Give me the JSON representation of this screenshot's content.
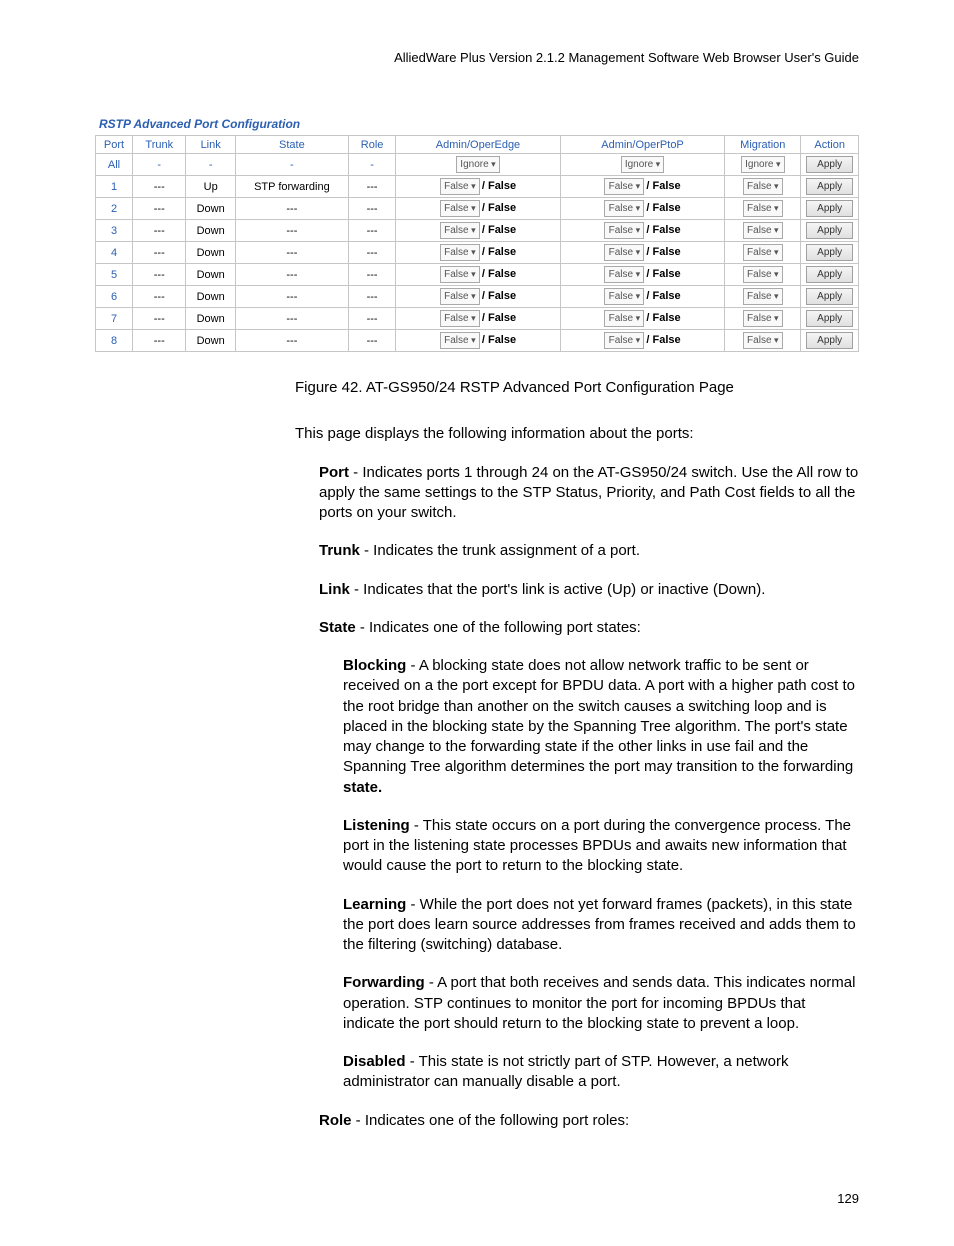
{
  "header": "AlliedWare Plus Version 2.1.2 Management Software Web Browser User's Guide",
  "table": {
    "title": "RSTP Advanced Port Configuration",
    "columns": [
      "Port",
      "Trunk",
      "Link",
      "State",
      "Role",
      "Admin/OperEdge",
      "Admin/OperPtoP",
      "Migration",
      "Action"
    ],
    "allRow": {
      "port": "All",
      "trunk": "-",
      "link": "-",
      "state": "-",
      "role": "-",
      "edge_dd": "Ignore",
      "ptop_dd": "Ignore",
      "mig_dd": "Ignore",
      "action": "Apply"
    },
    "rows": [
      {
        "port": "1",
        "trunk": "---",
        "link": "Up",
        "state": "STP forwarding",
        "role": "---",
        "edge_dd": "False",
        "edge_val": "/ False",
        "ptop_dd": "False",
        "ptop_val": "/ False",
        "mig_dd": "False",
        "action": "Apply"
      },
      {
        "port": "2",
        "trunk": "---",
        "link": "Down",
        "state": "---",
        "role": "---",
        "edge_dd": "False",
        "edge_val": "/ False",
        "ptop_dd": "False",
        "ptop_val": "/ False",
        "mig_dd": "False",
        "action": "Apply"
      },
      {
        "port": "3",
        "trunk": "---",
        "link": "Down",
        "state": "---",
        "role": "---",
        "edge_dd": "False",
        "edge_val": "/ False",
        "ptop_dd": "False",
        "ptop_val": "/ False",
        "mig_dd": "False",
        "action": "Apply"
      },
      {
        "port": "4",
        "trunk": "---",
        "link": "Down",
        "state": "---",
        "role": "---",
        "edge_dd": "False",
        "edge_val": "/ False",
        "ptop_dd": "False",
        "ptop_val": "/ False",
        "mig_dd": "False",
        "action": "Apply"
      },
      {
        "port": "5",
        "trunk": "---",
        "link": "Down",
        "state": "---",
        "role": "---",
        "edge_dd": "False",
        "edge_val": "/ False",
        "ptop_dd": "False",
        "ptop_val": "/ False",
        "mig_dd": "False",
        "action": "Apply"
      },
      {
        "port": "6",
        "trunk": "---",
        "link": "Down",
        "state": "---",
        "role": "---",
        "edge_dd": "False",
        "edge_val": "/ False",
        "ptop_dd": "False",
        "ptop_val": "/ False",
        "mig_dd": "False",
        "action": "Apply"
      },
      {
        "port": "7",
        "trunk": "---",
        "link": "Down",
        "state": "---",
        "role": "---",
        "edge_dd": "False",
        "edge_val": "/ False",
        "ptop_dd": "False",
        "ptop_val": "/ False",
        "mig_dd": "False",
        "action": "Apply"
      },
      {
        "port": "8",
        "trunk": "---",
        "link": "Down",
        "state": "---",
        "role": "---",
        "edge_dd": "False",
        "edge_val": "/ False",
        "ptop_dd": "False",
        "ptop_val": "/ False",
        "mig_dd": "False",
        "action": "Apply"
      }
    ]
  },
  "body": {
    "caption": "Figure 42. AT-GS950/24 RSTP Advanced Port Configuration Page",
    "intro": "This page displays the following information about the ports:",
    "port_label": "Port",
    "port_text": " - Indicates ports 1 through 24 on the AT-GS950/24 switch. Use the All row to apply the same settings to the STP Status, Priority, and Path Cost fields to all the ports on your switch.",
    "trunk_label": "Trunk",
    "trunk_text": " - Indicates the trunk assignment of a port.",
    "link_label": "Link",
    "link_text": " - Indicates that the port's link is active (Up) or inactive (Down).",
    "state_label": "State",
    "state_text": " - Indicates one of the following port states:",
    "blocking_label": "Blocking",
    "blocking_text": " - A blocking state does not allow network traffic to be sent or received on a the port except for BPDU data. A port with a higher path cost to the root bridge than another on the switch causes a switching loop and is placed in the blocking state by the Spanning Tree algorithm. The port's state may change to the forwarding state if the other links in use fail and the Spanning Tree algorithm determines the port may transition to the forwarding ",
    "blocking_tail": "state.",
    "listening_label": "Listening",
    "listening_text": " - This state occurs on a port during the convergence process. The port in the listening state processes BPDUs and awaits new information that would cause the port to return to the blocking state.",
    "learning_label": "Learning",
    "learning_text": " - While the port does not yet forward frames (packets), in this state the port does learn source addresses from frames received and adds them to the filtering (switching) database.",
    "forwarding_label": "Forwarding",
    "forwarding_text": " - A port that both receives and sends data. This indicates normal operation. STP continues to monitor the port for incoming BPDUs that indicate the port should return to the blocking state to prevent a loop.",
    "disabled_label": "Disabled",
    "disabled_text": " - This state is not strictly part of STP. However, a network administrator can manually disable a port.",
    "role_label": "Role",
    "role_text": " - Indicates one of the following port roles:"
  },
  "pageNum": "129"
}
